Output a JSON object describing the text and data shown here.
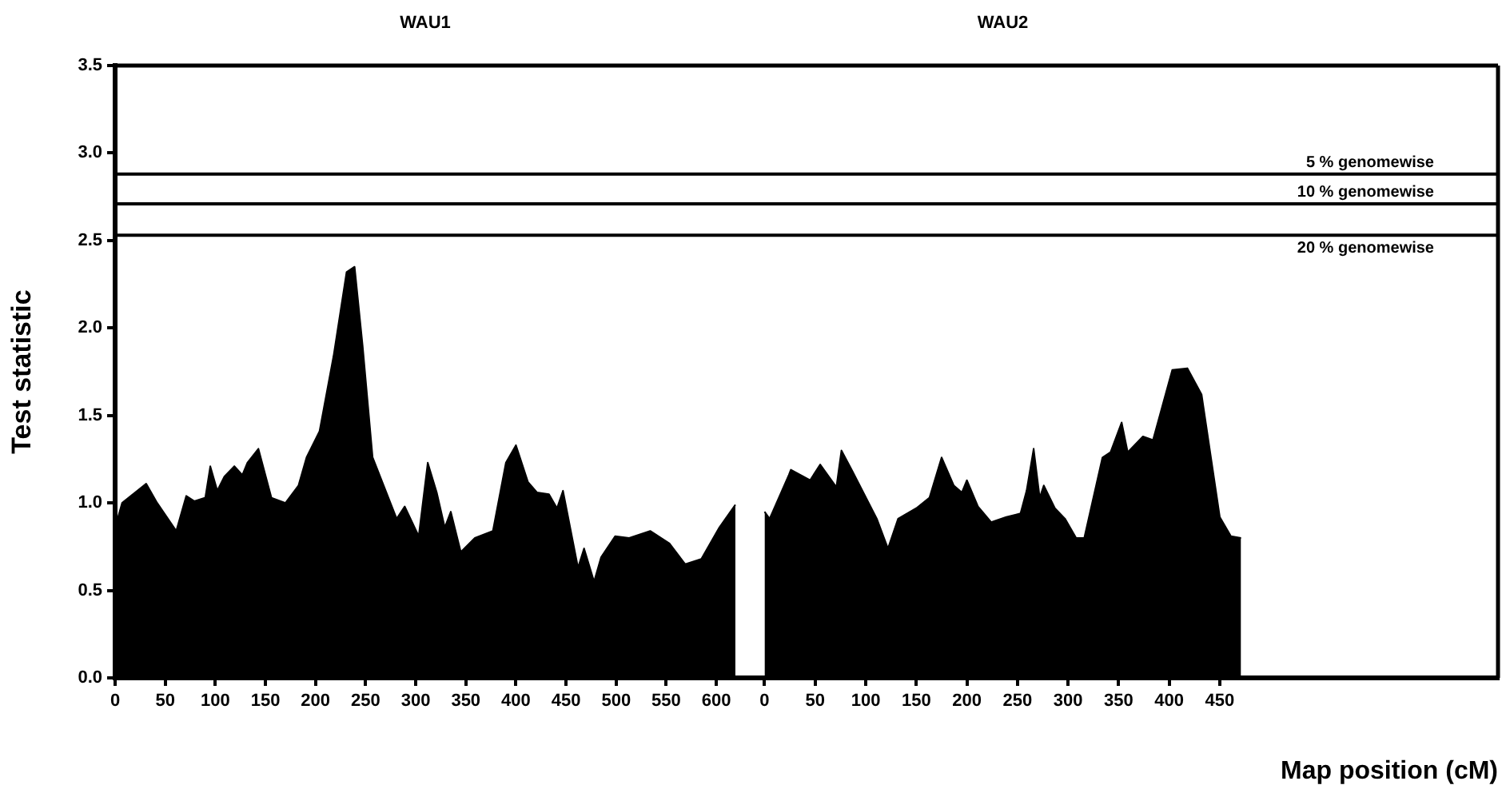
{
  "chart_data": [
    {
      "type": "area",
      "title": "WAU1",
      "ylabel": "Test statistic",
      "xlim": [
        0,
        635
      ],
      "ylim": [
        0,
        3.5
      ],
      "xticks": [
        0,
        50,
        100,
        150,
        200,
        250,
        300,
        350,
        400,
        450,
        500,
        550,
        600
      ],
      "yticks": [
        {
          "value": 0,
          "label": "0.0"
        },
        0.5,
        {
          "value": 1,
          "label": "1.0"
        },
        1.5,
        {
          "value": 2,
          "label": "2.0"
        },
        2.5,
        {
          "value": 3,
          "label": "3.0"
        },
        3.5
      ],
      "grid": false,
      "legend": false,
      "series": [
        {
          "color": "#000000",
          "x": [
            0,
            7,
            31,
            42,
            61,
            71,
            79,
            90,
            95,
            102,
            109,
            119,
            127,
            132,
            143,
            156,
            170,
            183,
            191,
            204,
            218,
            231,
            239,
            247,
            257,
            281,
            289,
            303,
            312,
            321,
            329,
            335,
            345,
            359,
            377,
            390,
            400,
            412,
            421,
            433,
            441,
            447,
            462,
            468,
            478,
            485,
            499,
            513,
            534,
            553,
            569,
            585,
            603,
            619
          ],
          "values": [
            0.86,
            1.0,
            1.11,
            1.0,
            0.84,
            1.04,
            1.01,
            1.03,
            1.21,
            1.07,
            1.15,
            1.21,
            1.16,
            1.23,
            1.31,
            1.03,
            1.0,
            1.1,
            1.26,
            1.41,
            1.84,
            2.32,
            2.35,
            1.9,
            1.26,
            0.91,
            0.98,
            0.81,
            1.23,
            1.06,
            0.86,
            0.95,
            0.72,
            0.8,
            0.84,
            1.23,
            1.33,
            1.12,
            1.06,
            1.05,
            0.97,
            1.07,
            0.63,
            0.74,
            0.55,
            0.69,
            0.81,
            0.8,
            0.84,
            0.77,
            0.65,
            0.68,
            0.86,
            0.99
          ]
        }
      ],
      "ref_lines": [
        {
          "axis": "y",
          "value": 2.88,
          "color": "#000000"
        },
        {
          "axis": "y",
          "value": 2.71,
          "color": "#000000"
        },
        {
          "axis": "y",
          "value": 2.53,
          "color": "#000000"
        }
      ]
    },
    {
      "type": "area",
      "title": "WAU2",
      "xlabel": "Map position (cM)",
      "xlim": [
        -13,
        725
      ],
      "ylim": [
        0,
        3.5
      ],
      "xticks": [
        0,
        50,
        100,
        150,
        200,
        250,
        300,
        350,
        400,
        450
      ],
      "tick_labels": "x",
      "grid": false,
      "legend": false,
      "series": [
        {
          "color": "#000000",
          "x": [
            0,
            5,
            24,
            26,
            45,
            55,
            71,
            76,
            87,
            111,
            122,
            132,
            150,
            163,
            175,
            187,
            195,
            200,
            211,
            224,
            239,
            253,
            259,
            266,
            272,
            276,
            287,
            297,
            308,
            316,
            334,
            342,
            353,
            359,
            374,
            384,
            403,
            418,
            432,
            450,
            461,
            471
          ],
          "values": [
            0.95,
            0.91,
            1.16,
            1.19,
            1.13,
            1.22,
            1.09,
            1.3,
            1.18,
            0.91,
            0.74,
            0.91,
            0.97,
            1.03,
            1.26,
            1.1,
            1.06,
            1.13,
            0.98,
            0.89,
            0.92,
            0.94,
            1.07,
            1.31,
            1.03,
            1.1,
            0.97,
            0.91,
            0.8,
            0.8,
            1.26,
            1.29,
            1.46,
            1.29,
            1.38,
            1.36,
            1.76,
            1.77,
            1.62,
            0.92,
            0.81,
            0.8
          ]
        }
      ],
      "ref_lines": [
        {
          "axis": "y",
          "value": 2.88,
          "label": "5 % genomewise",
          "color": "#000000"
        },
        {
          "axis": "y",
          "value": 2.71,
          "label": "10 % genomewise",
          "color": "#000000"
        },
        {
          "axis": "y",
          "value": 2.53,
          "label": "20 % genomewise",
          "color": "#000000"
        }
      ]
    }
  ]
}
